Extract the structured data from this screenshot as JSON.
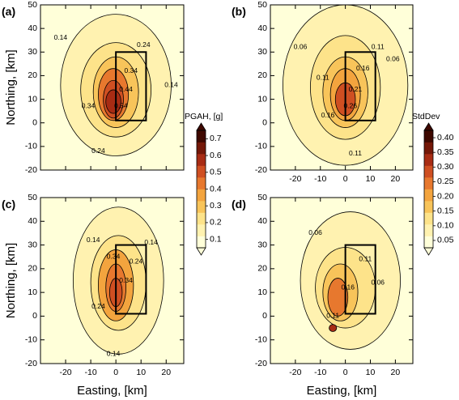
{
  "chart_data": [
    {
      "type": "heatmap",
      "panel_label": "(a)",
      "field": "mean",
      "xlabel": "",
      "ylabel": "Northing, [km]",
      "xlim": [
        -30,
        27
      ],
      "ylim": [
        -20,
        50
      ],
      "xticks": [
        "-20",
        "-10",
        "0",
        "10",
        "20"
      ],
      "yticks": [
        "-20",
        "-10",
        "0",
        "10",
        "20",
        "30",
        "40",
        "50"
      ],
      "show_xticks": false,
      "contour_labels": [
        {
          "text": "0.14",
          "x": -22,
          "y": 36
        },
        {
          "text": "0.24",
          "x": 11,
          "y": 33
        },
        {
          "text": "0.24",
          "x": -7,
          "y": -12
        },
        {
          "text": "0.14",
          "x": 22,
          "y": 16
        },
        {
          "text": "0.34",
          "x": 6,
          "y": 22
        },
        {
          "text": "0.34",
          "x": -11,
          "y": 7
        },
        {
          "text": "0.44",
          "x": 4,
          "y": 14
        },
        {
          "text": "0.54",
          "x": 2,
          "y": 7
        }
      ]
    },
    {
      "type": "heatmap",
      "panel_label": "(b)",
      "field": "std",
      "xlabel": "",
      "ylabel": "",
      "xlim": [
        -30,
        27
      ],
      "ylim": [
        -20,
        50
      ],
      "xticks": [
        "-20",
        "-10",
        "0",
        "10",
        "20"
      ],
      "yticks": [
        "-20",
        "-10",
        "0",
        "10",
        "20",
        "30",
        "40",
        "50"
      ],
      "show_xticks": true,
      "contour_labels": [
        {
          "text": "0.06",
          "x": -18,
          "y": 32
        },
        {
          "text": "0.06",
          "x": 19,
          "y": 27
        },
        {
          "text": "0.11",
          "x": 13,
          "y": 32
        },
        {
          "text": "0.11",
          "x": -9,
          "y": 19
        },
        {
          "text": "0.11",
          "x": 4,
          "y": -13
        },
        {
          "text": "0.16",
          "x": 7,
          "y": 23
        },
        {
          "text": "0.16",
          "x": -7,
          "y": 3
        },
        {
          "text": "0.21",
          "x": 4,
          "y": 14
        },
        {
          "text": "0.26",
          "x": 2,
          "y": 7
        }
      ]
    },
    {
      "type": "heatmap",
      "panel_label": "(c)",
      "field": "mean_c",
      "xlabel": "Easting, [km]",
      "ylabel": "Northing, [km]",
      "xlim": [
        -30,
        27
      ],
      "ylim": [
        -20,
        50
      ],
      "xticks": [
        "-20",
        "-10",
        "0",
        "10",
        "20"
      ],
      "yticks": [
        "-20",
        "-10",
        "0",
        "10",
        "20",
        "30",
        "40",
        "50"
      ],
      "show_xticks": true,
      "contour_labels": [
        {
          "text": "0.14",
          "x": -9,
          "y": 32
        },
        {
          "text": "0.14",
          "x": 14,
          "y": 31
        },
        {
          "text": "0.24",
          "x": 8,
          "y": 23
        },
        {
          "text": "0.24",
          "x": -7,
          "y": 4
        },
        {
          "text": "0.34",
          "x": -1,
          "y": 25
        },
        {
          "text": "0.34",
          "x": 4,
          "y": 15
        },
        {
          "text": "0.14",
          "x": -1,
          "y": -16
        }
      ]
    },
    {
      "type": "heatmap",
      "panel_label": "(d)",
      "field": "std_d",
      "xlabel": "Easting, [km]",
      "ylabel": "",
      "xlim": [
        -30,
        27
      ],
      "ylim": [
        -20,
        50
      ],
      "xticks": [
        "-20",
        "-10",
        "0",
        "10",
        "20"
      ],
      "yticks": [
        "-20",
        "-10",
        "0",
        "10",
        "20",
        "30",
        "40",
        "50"
      ],
      "show_xticks": true,
      "contour_labels": [
        {
          "text": "0.06",
          "x": -12,
          "y": 35
        },
        {
          "text": "0.11",
          "x": 8,
          "y": 24
        },
        {
          "text": "0.06",
          "x": 13,
          "y": 14
        },
        {
          "text": "0.16",
          "x": 1,
          "y": 12
        },
        {
          "text": "0.11",
          "x": -5,
          "y": 0
        }
      ]
    }
  ],
  "colorbars": [
    {
      "title": "PGAH, [g]",
      "ticks": [
        "0.1",
        "0.2",
        "0.3",
        "0.4",
        "0.5",
        "0.6",
        "0.7"
      ],
      "tick_values": [
        0.1,
        0.2,
        0.3,
        0.4,
        0.5,
        0.6,
        0.7
      ],
      "range": [
        0.05,
        0.75
      ]
    },
    {
      "title": "StdDev",
      "ticks": [
        "0.05",
        "0.10",
        "0.15",
        "0.20",
        "0.25",
        "0.30",
        "0.35",
        "0.40"
      ],
      "tick_values": [
        0.05,
        0.1,
        0.15,
        0.2,
        0.25,
        0.3,
        0.35,
        0.4
      ],
      "range": [
        0.025,
        0.425
      ]
    }
  ],
  "fault_rectangle": {
    "x": [
      0,
      12
    ],
    "y": [
      1,
      30
    ]
  },
  "colors": {
    "palette": [
      "#ffffd9",
      "#fff2b0",
      "#fde38a",
      "#f8c45a",
      "#f3a43e",
      "#e7782e",
      "#cf4f22",
      "#a82c14",
      "#741708",
      "#3e0800"
    ]
  }
}
